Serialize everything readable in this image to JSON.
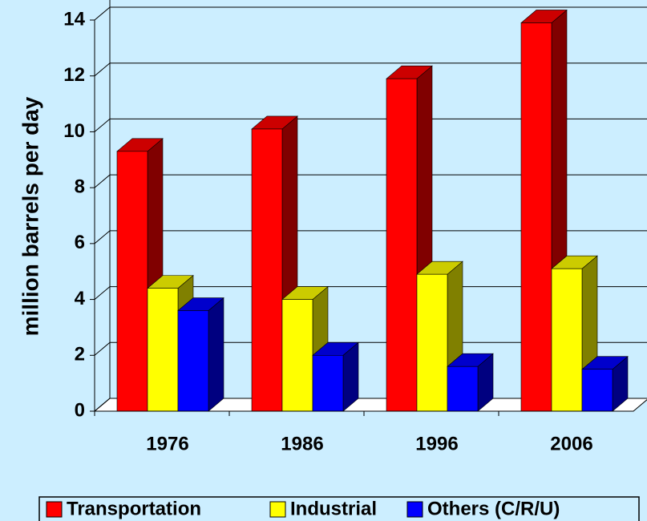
{
  "chart_data": {
    "type": "bar3d",
    "y_axis_label": "million barrels per day",
    "categories": [
      "1976",
      "1986",
      "1996",
      "2006"
    ],
    "series": [
      {
        "name": "Transportation",
        "color": "#ff0000",
        "values": [
          9.3,
          10.1,
          11.9,
          13.9
        ]
      },
      {
        "name": "Industrial",
        "color": "#ffff00",
        "values": [
          4.4,
          4.0,
          4.9,
          5.1
        ]
      },
      {
        "name": "Others (C/R/U)",
        "color": "#0000ff",
        "values": [
          3.6,
          2.0,
          1.6,
          1.5
        ]
      }
    ],
    "ylim": [
      0,
      14
    ],
    "yticks": [
      0,
      2,
      4,
      6,
      8,
      10,
      12,
      14
    ],
    "grid": true,
    "legend": "bottom"
  }
}
